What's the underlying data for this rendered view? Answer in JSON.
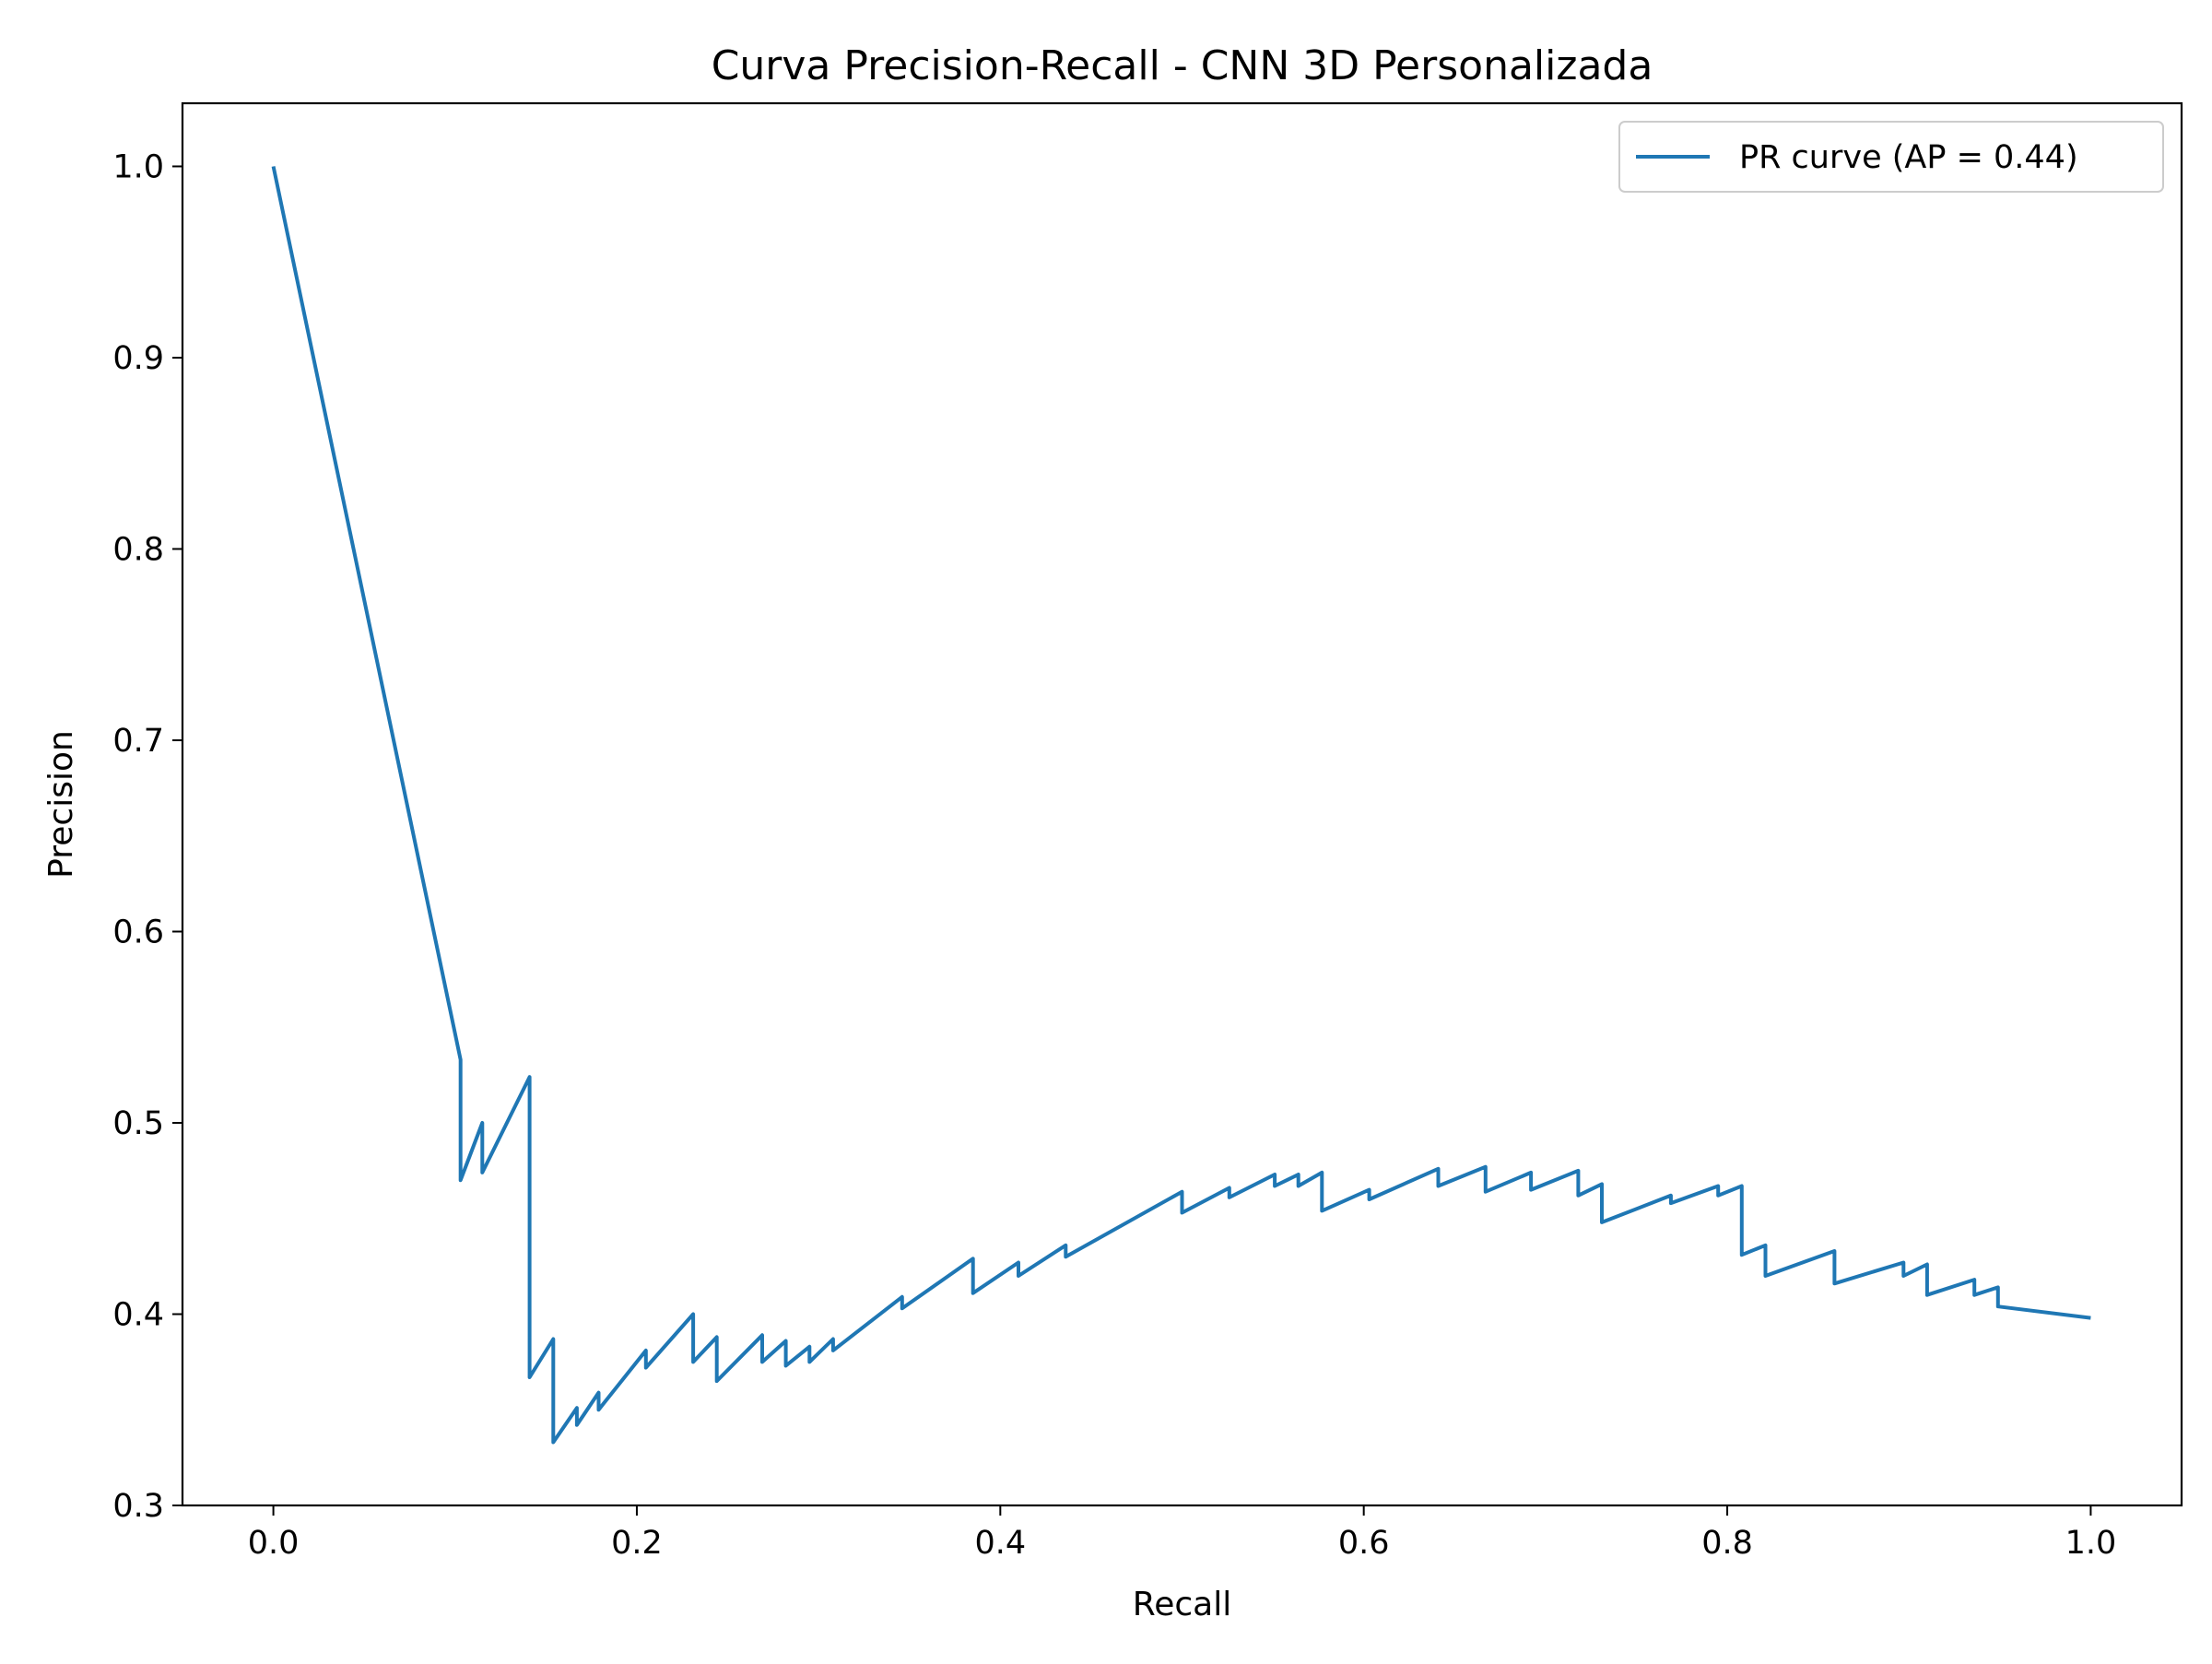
{
  "chart_data": {
    "type": "line",
    "title": "Curva Precision-Recall - CNN 3D Personalizada",
    "xlabel": "Recall",
    "ylabel": "Precision",
    "xlim": [
      -0.05,
      1.05
    ],
    "ylim": [
      0.3,
      1.033
    ],
    "xticks": [
      0.0,
      0.2,
      0.4,
      0.6,
      0.8,
      1.0
    ],
    "xtick_labels": [
      "0.0",
      "0.2",
      "0.4",
      "0.6",
      "0.8",
      "1.0"
    ],
    "yticks": [
      0.3,
      0.4,
      0.5,
      0.6,
      0.7,
      0.8,
      0.9,
      1.0
    ],
    "ytick_labels": [
      "0.3",
      "0.4",
      "0.5",
      "0.6",
      "0.7",
      "0.8",
      "0.9",
      "1.0"
    ],
    "grid": false,
    "legend_position": "top-right",
    "colors": {
      "series": "#1f77b4",
      "axes": "#000000",
      "background": "#ffffff"
    },
    "series": [
      {
        "name": "PR curve (AP = 0.44)",
        "x": [
          0.0,
          0.103,
          0.103,
          0.115,
          0.115,
          0.141,
          0.141,
          0.154,
          0.154,
          0.167,
          0.167,
          0.179,
          0.179,
          0.205,
          0.205,
          0.231,
          0.231,
          0.244,
          0.244,
          0.269,
          0.269,
          0.282,
          0.282,
          0.295,
          0.295,
          0.308,
          0.308,
          0.346,
          0.346,
          0.385,
          0.385,
          0.41,
          0.41,
          0.436,
          0.436,
          0.5,
          0.5,
          0.526,
          0.526,
          0.551,
          0.551,
          0.564,
          0.564,
          0.577,
          0.577,
          0.603,
          0.603,
          0.641,
          0.641,
          0.667,
          0.667,
          0.692,
          0.692,
          0.718,
          0.718,
          0.731,
          0.731,
          0.769,
          0.769,
          0.795,
          0.795,
          0.808,
          0.808,
          0.821,
          0.821,
          0.859,
          0.859,
          0.897,
          0.897,
          0.91,
          0.91,
          0.936,
          0.936,
          0.949,
          0.949,
          1.0
        ],
        "y": [
          1.0,
          0.533,
          0.47,
          0.5,
          0.474,
          0.524,
          0.367,
          0.387,
          0.333,
          0.351,
          0.342,
          0.359,
          0.35,
          0.381,
          0.372,
          0.4,
          0.375,
          0.388,
          0.365,
          0.389,
          0.375,
          0.386,
          0.373,
          0.383,
          0.375,
          0.387,
          0.381,
          0.409,
          0.403,
          0.429,
          0.411,
          0.427,
          0.42,
          0.436,
          0.43,
          0.464,
          0.453,
          0.466,
          0.461,
          0.473,
          0.467,
          0.473,
          0.467,
          0.474,
          0.454,
          0.465,
          0.46,
          0.476,
          0.467,
          0.477,
          0.464,
          0.474,
          0.465,
          0.475,
          0.462,
          0.468,
          0.448,
          0.462,
          0.458,
          0.467,
          0.462,
          0.467,
          0.431,
          0.436,
          0.42,
          0.433,
          0.416,
          0.427,
          0.42,
          0.426,
          0.41,
          0.418,
          0.41,
          0.414,
          0.404,
          0.398
        ]
      }
    ]
  }
}
